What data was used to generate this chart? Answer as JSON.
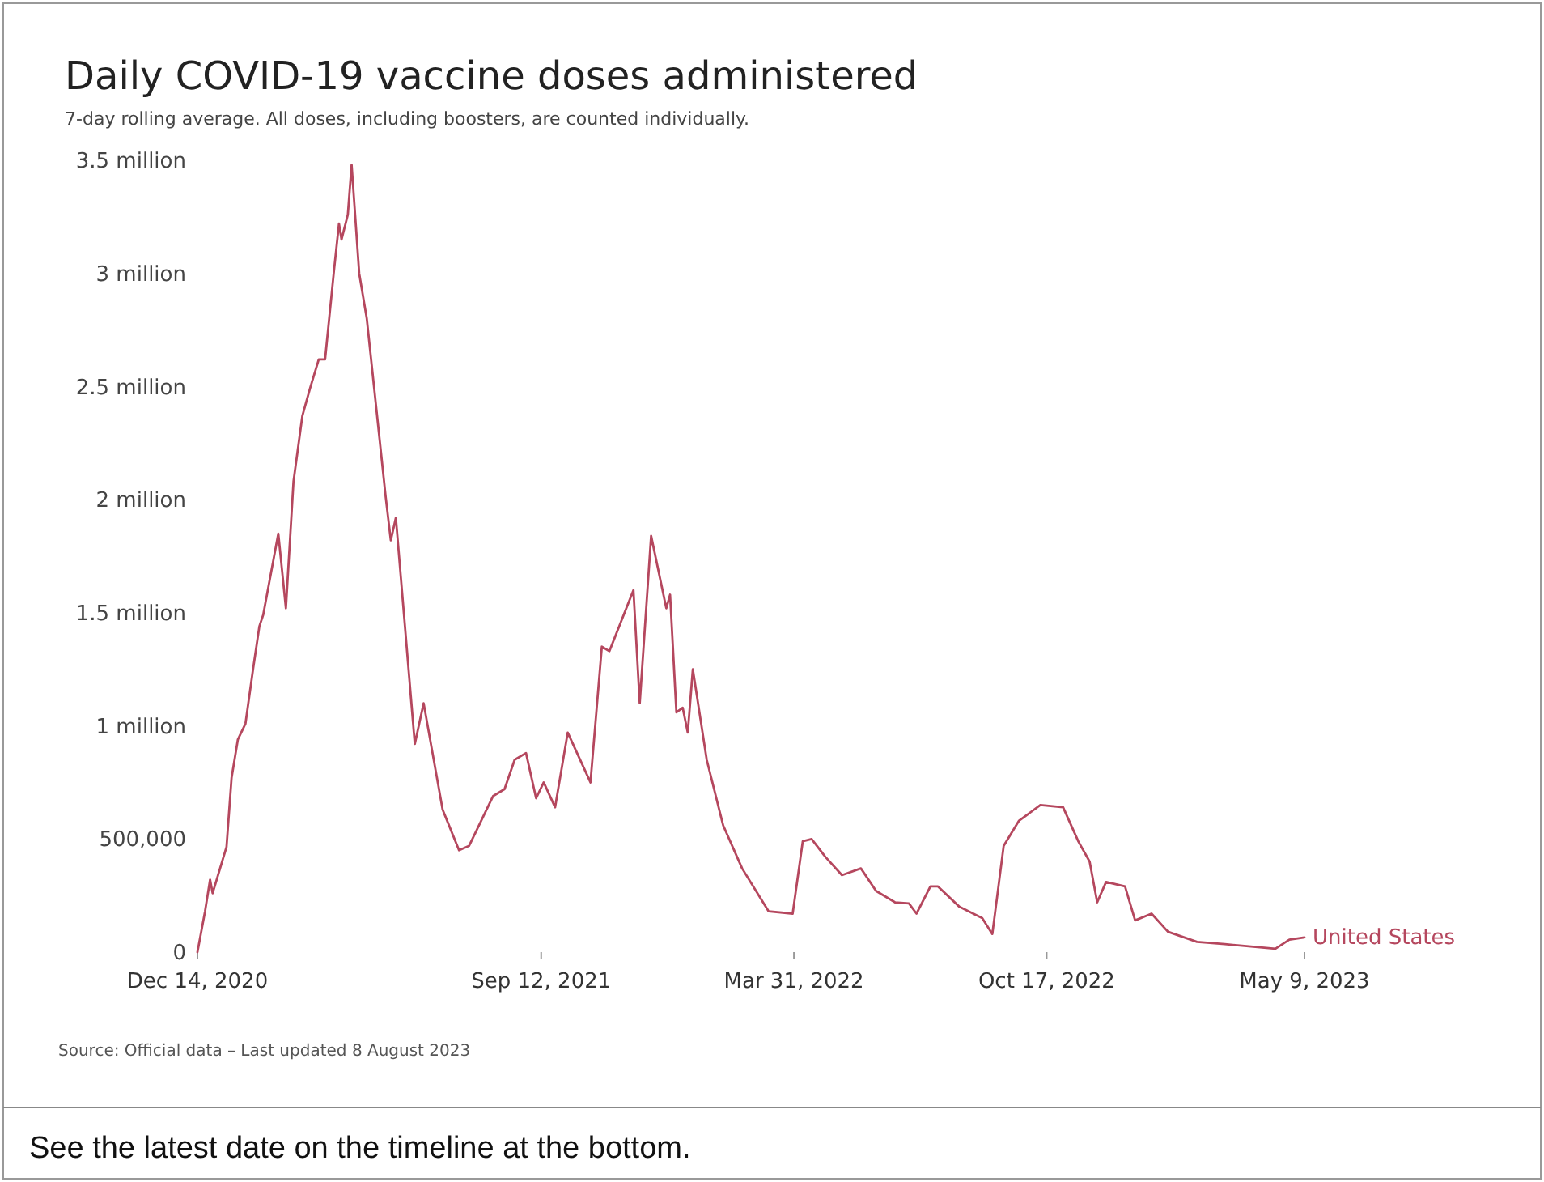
{
  "chart_data": {
    "type": "line",
    "title": "Daily COVID-19 vaccine doses administered",
    "subtitle": "7-day rolling average. All doses, including boosters, are counted individually.",
    "annotations": [
      "Source: Official data – Last updated 8 August 2023",
      "See the latest date on the timeline at the bottom."
    ],
    "xlim": [
      "2020-12-14",
      "2023-05-09"
    ],
    "xticks": [
      {
        "value": "2020-12-14",
        "label": "Dec 14, 2020"
      },
      {
        "value": "2021-09-12",
        "label": "Sep 12, 2021"
      },
      {
        "value": "2022-03-31",
        "label": "Mar 31, 2022"
      },
      {
        "value": "2022-10-17",
        "label": "Oct 17, 2022"
      },
      {
        "value": "2023-05-09",
        "label": "May 9, 2023"
      }
    ],
    "ylim": [
      0,
      3500000
    ],
    "yticks": [
      0,
      {
        "value": 500000,
        "label": "500,000"
      },
      {
        "value": 1000000,
        "label": "1 million"
      },
      {
        "value": 1500000,
        "label": "1.5 million"
      },
      {
        "value": 2000000,
        "label": "2 million"
      },
      {
        "value": 2500000,
        "label": "2.5 million"
      },
      {
        "value": 3000000,
        "label": "3 million"
      },
      {
        "value": 3500000,
        "label": "3.5 million"
      }
    ],
    "grid": false,
    "series": [
      {
        "name": "United States",
        "color": "#b5475e",
        "x": [
          "2020-12-14",
          "2020-12-20",
          "2020-12-24",
          "2020-12-26",
          "2021-01-06",
          "2021-01-10",
          "2021-01-15",
          "2021-01-21",
          "2021-01-27",
          "2021-02-01",
          "2021-02-04",
          "2021-02-16",
          "2021-02-22",
          "2021-02-28",
          "2021-03-07",
          "2021-03-13",
          "2021-03-20",
          "2021-03-25",
          "2021-04-01",
          "2021-04-05",
          "2021-04-07",
          "2021-04-12",
          "2021-04-15",
          "2021-04-21",
          "2021-04-27",
          "2021-05-12",
          "2021-05-16",
          "2021-05-20",
          "2021-06-04",
          "2021-06-11",
          "2021-06-26",
          "2021-07-09",
          "2021-07-17",
          "2021-08-05",
          "2021-08-14",
          "2021-08-22",
          "2021-08-31",
          "2021-09-08",
          "2021-09-14",
          "2021-09-23",
          "2021-10-03",
          "2021-10-21",
          "2021-10-30",
          "2021-11-05",
          "2021-11-24",
          "2021-11-29",
          "2021-12-08",
          "2021-12-20",
          "2021-12-23",
          "2021-12-28",
          "2022-01-02",
          "2022-01-06",
          "2022-01-10",
          "2022-01-21",
          "2022-02-03",
          "2022-02-18",
          "2022-03-11",
          "2022-03-30",
          "2022-04-07",
          "2022-04-14",
          "2022-04-25",
          "2022-05-08",
          "2022-05-23",
          "2022-06-04",
          "2022-06-19",
          "2022-06-30",
          "2022-07-06",
          "2022-07-17",
          "2022-07-23",
          "2022-08-09",
          "2022-08-27",
          "2022-09-04",
          "2022-09-13",
          "2022-09-25",
          "2022-10-12",
          "2022-10-30",
          "2022-11-11",
          "2022-11-20",
          "2022-11-26",
          "2022-12-03",
          "2022-12-18",
          "2022-12-26",
          "2023-01-08",
          "2023-01-21",
          "2023-02-13",
          "2023-03-07",
          "2023-04-16",
          "2023-04-27",
          "2023-05-09"
        ],
        "values": [
          0,
          180000,
          320000,
          260000,
          465000,
          770000,
          940000,
          1010000,
          1250000,
          1440000,
          1490000,
          1850000,
          1520000,
          2080000,
          2370000,
          2490000,
          2620000,
          2620000,
          3010000,
          3220000,
          3150000,
          3260000,
          3480000,
          3000000,
          2800000,
          2010000,
          1820000,
          1920000,
          920000,
          1100000,
          630000,
          450000,
          470000,
          690000,
          720000,
          850000,
          880000,
          680000,
          750000,
          640000,
          970000,
          750000,
          1350000,
          1330000,
          1600000,
          1100000,
          1840000,
          1520000,
          1580000,
          1060000,
          1080000,
          970000,
          1250000,
          850000,
          560000,
          370000,
          180000,
          170000,
          490000,
          500000,
          420000,
          340000,
          370000,
          270000,
          220000,
          215000,
          170000,
          290000,
          290000,
          200000,
          150000,
          80000,
          470000,
          580000,
          650000,
          640000,
          490000,
          400000,
          220000,
          310000,
          290000,
          140000,
          170000,
          90000,
          45000,
          35000,
          15000,
          55000,
          65000
        ]
      }
    ]
  }
}
